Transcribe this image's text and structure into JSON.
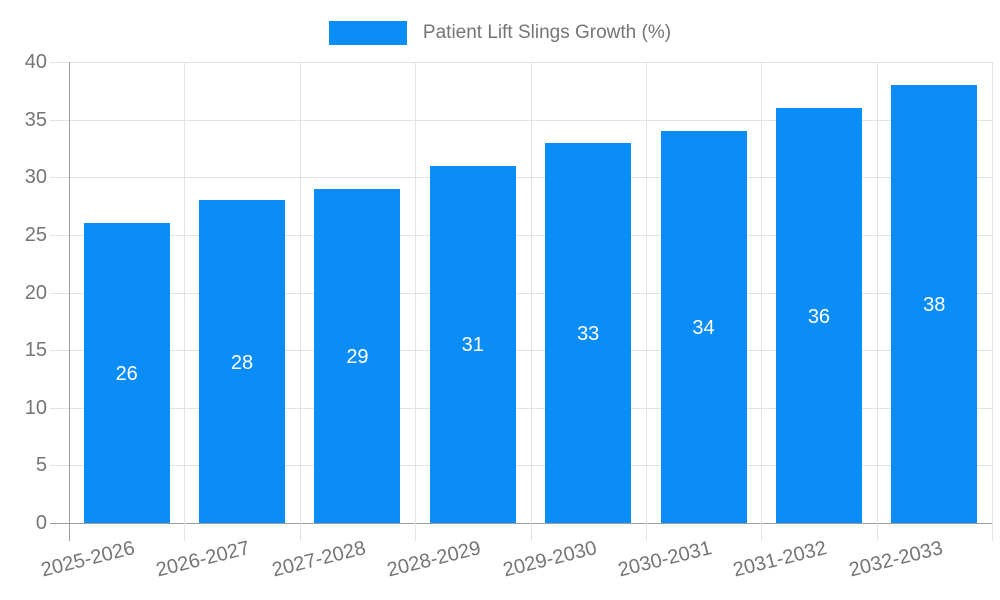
{
  "chart_data": {
    "type": "bar",
    "title": "Patient Lift Slings Growth (%)",
    "categories": [
      "2025-2026",
      "2026-2027",
      "2027-2028",
      "2028-2029",
      "2029-2030",
      "2030-2031",
      "2031-2032",
      "2032-2033"
    ],
    "values": [
      26,
      28,
      29,
      31,
      33,
      34,
      36,
      38
    ],
    "yticks": [
      0,
      5,
      10,
      15,
      20,
      25,
      30,
      35,
      40
    ],
    "ylim": [
      0,
      40
    ],
    "xlabel": "",
    "ylabel": "",
    "grid": "both",
    "legend_position": "top-center",
    "value_labels": "inside-center"
  },
  "colors": {
    "bar": "#0b8df8",
    "grid": "#e3e3e3",
    "axis": "#9e9e9e",
    "text": "#757575",
    "value_label": "#ffffff",
    "background": "#ffffff"
  }
}
